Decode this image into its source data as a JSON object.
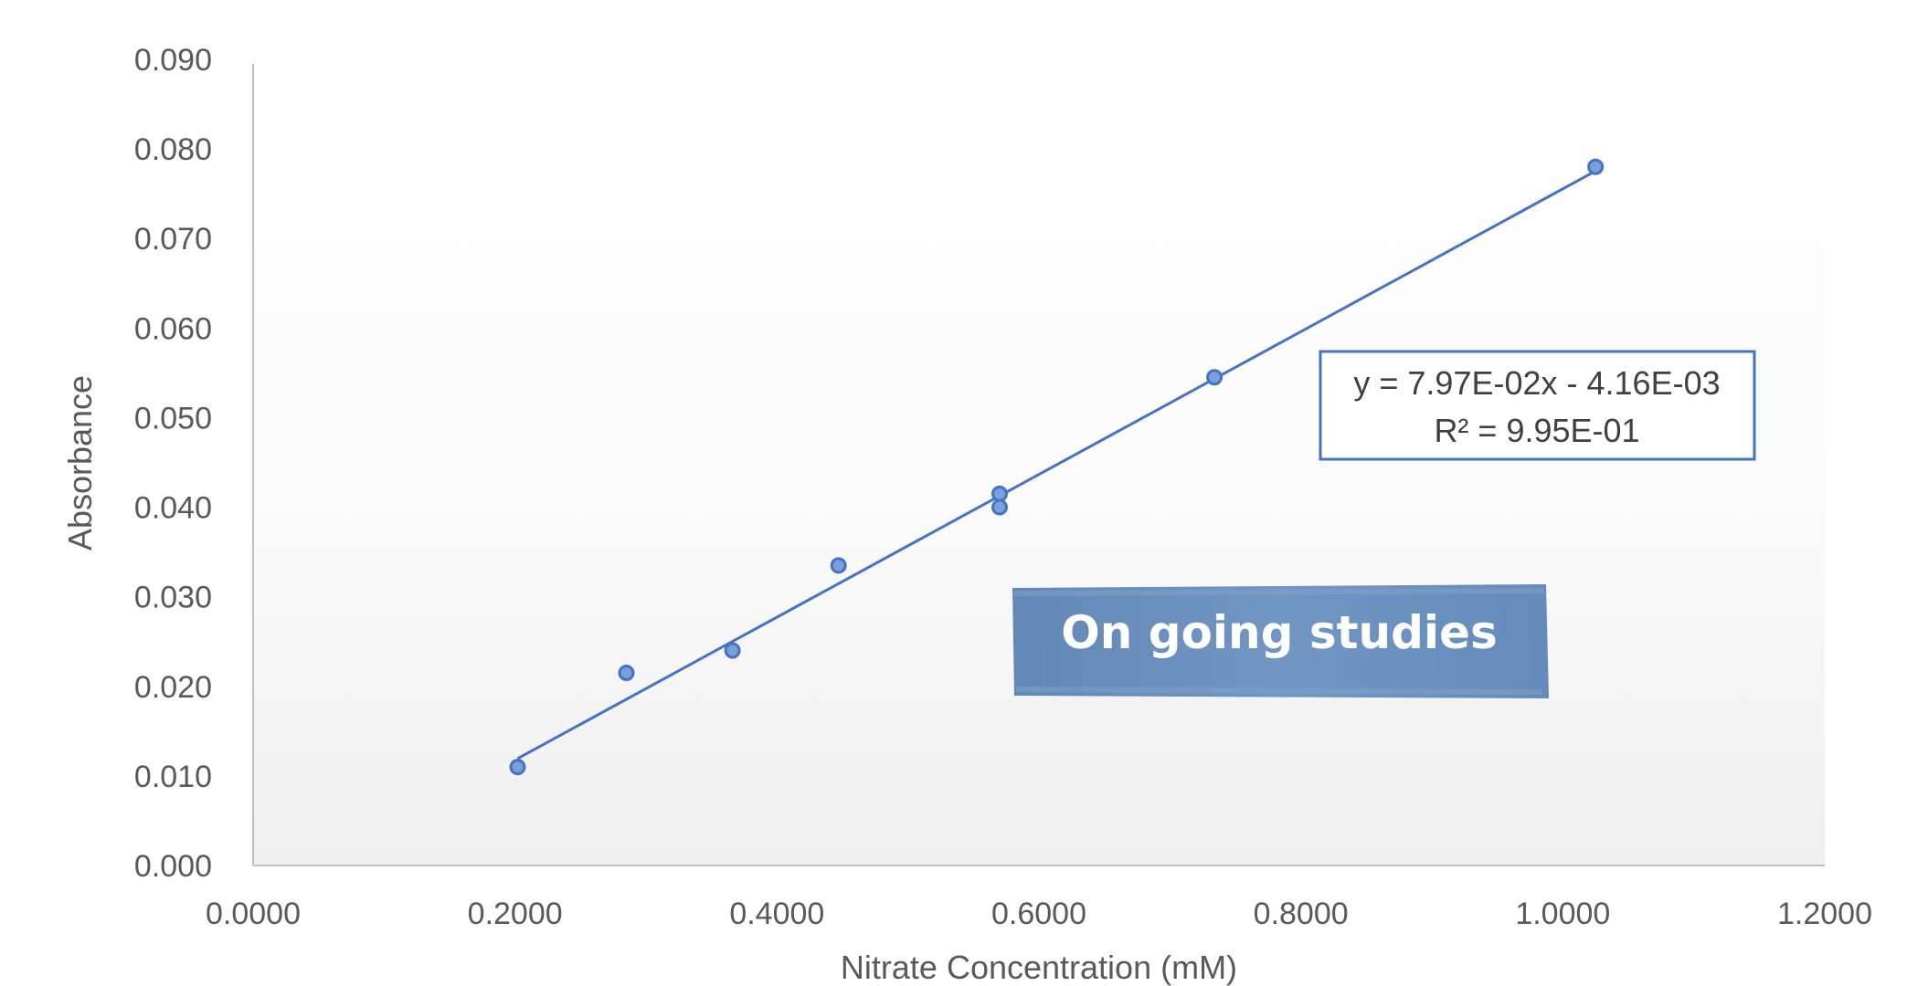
{
  "chart_data": {
    "type": "scatter",
    "title": "",
    "xlabel": "Nitrate Concentration (mM)",
    "ylabel": "Absorbance",
    "xlim": [
      0,
      1.2
    ],
    "ylim": [
      0,
      0.09
    ],
    "x_ticks": [
      "0.0000",
      "0.2000",
      "0.4000",
      "0.6000",
      "0.8000",
      "1.0000",
      "1.2000"
    ],
    "y_ticks": [
      "0.000",
      "0.010",
      "0.020",
      "0.030",
      "0.040",
      "0.050",
      "0.060",
      "0.070",
      "0.080",
      "0.090"
    ],
    "grid": false,
    "legend": "none",
    "series": [
      {
        "x": [
          0.202,
          0.285,
          0.366,
          0.447,
          0.57,
          0.57,
          0.734,
          1.025
        ],
        "y": [
          0.011,
          0.0215,
          0.024,
          0.0335,
          0.0415,
          0.04,
          0.0545,
          0.078
        ],
        "color": "#4472c4"
      }
    ],
    "trendline": {
      "slope": 0.0797,
      "intercept": -0.00416,
      "x_range": [
        0.202,
        1.025
      ],
      "equation": "y = 7.97E-02x - 4.16E-03",
      "r_squared": "R² = 9.95E-01",
      "color": "#4472c4"
    },
    "annotations": [
      {
        "text": "On going studies"
      }
    ]
  }
}
